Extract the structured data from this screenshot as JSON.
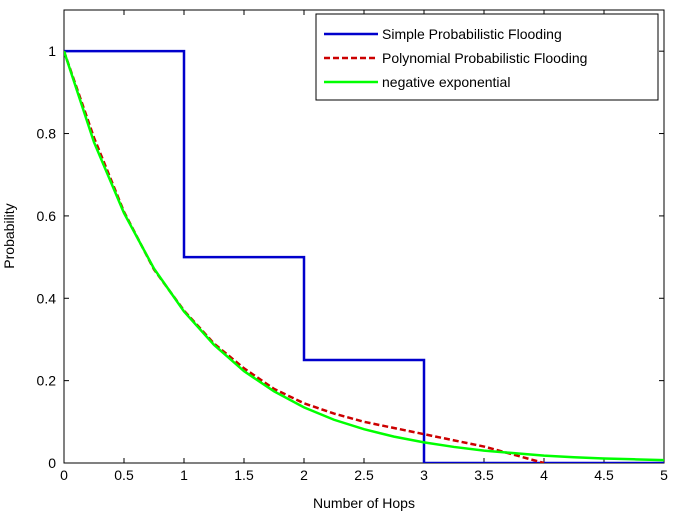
{
  "chart_data": {
    "type": "line",
    "title": "",
    "xlabel": "Number of Hops",
    "ylabel": "Probability",
    "xlim": [
      0,
      5
    ],
    "ylim": [
      0,
      1.1
    ],
    "xticks": [
      "0",
      "0.5",
      "1",
      "1.5",
      "2",
      "2.5",
      "3",
      "3.5",
      "4",
      "4.5",
      "5"
    ],
    "yticks": [
      "0",
      "0.2",
      "0.4",
      "0.6",
      "0.8",
      "1"
    ],
    "grid": false,
    "legend_position": "top-right",
    "series": [
      {
        "name": "Simple Probabilistic Flooding",
        "color": "#0000cc",
        "dash": "solid",
        "x": [
          0,
          1,
          1,
          2,
          2,
          3,
          3,
          5
        ],
        "y": [
          1,
          1,
          0.5,
          0.5,
          0.25,
          0.25,
          0,
          0
        ]
      },
      {
        "name": "Polynomial Probabilistic Flooding",
        "color": "#cc0000",
        "dash": "dashed",
        "x": [
          0,
          0.25,
          0.5,
          0.75,
          1,
          1.25,
          1.5,
          1.75,
          2,
          2.25,
          2.5,
          2.75,
          3,
          3.25,
          3.5,
          3.75,
          4
        ],
        "y": [
          1,
          0.79,
          0.61,
          0.47,
          0.37,
          0.29,
          0.23,
          0.18,
          0.145,
          0.12,
          0.1,
          0.085,
          0.07,
          0.055,
          0.04,
          0.02,
          0
        ]
      },
      {
        "name": "negative exponential",
        "color": "#00ff00",
        "dash": "solid",
        "x": [
          0,
          0.25,
          0.5,
          0.75,
          1,
          1.25,
          1.5,
          1.75,
          2,
          2.25,
          2.5,
          2.75,
          3,
          3.25,
          3.5,
          3.75,
          4,
          4.25,
          4.5,
          4.75,
          5
        ],
        "y": [
          1,
          0.779,
          0.607,
          0.472,
          0.368,
          0.287,
          0.223,
          0.174,
          0.135,
          0.105,
          0.082,
          0.064,
          0.05,
          0.039,
          0.03,
          0.024,
          0.018,
          0.014,
          0.011,
          0.009,
          0.007
        ]
      }
    ]
  }
}
